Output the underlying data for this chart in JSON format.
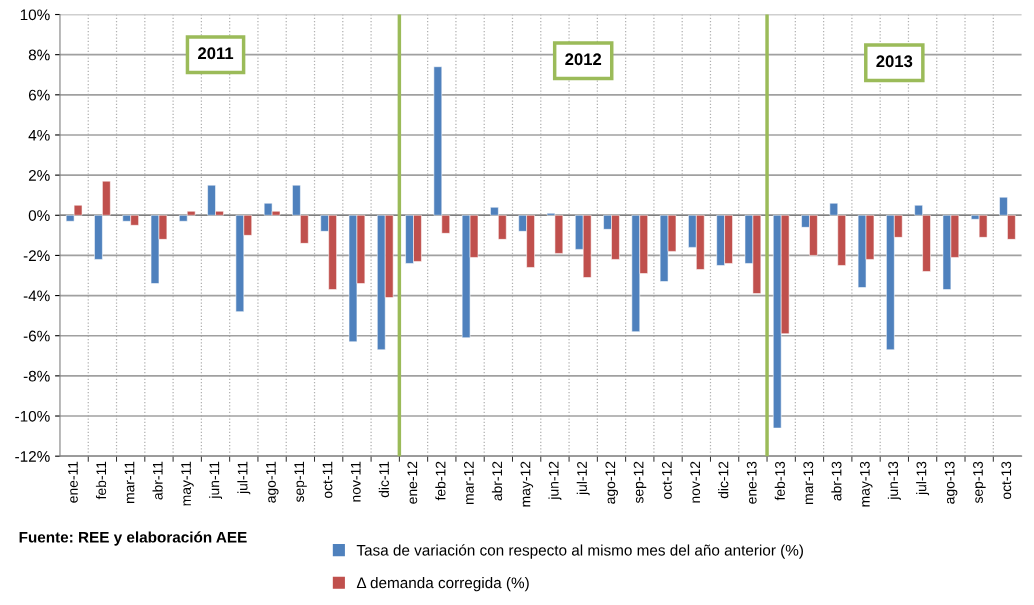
{
  "chart_data": {
    "type": "bar",
    "categories": [
      "ene-11",
      "feb-11",
      "mar-11",
      "abr-11",
      "may-11",
      "jun-11",
      "jul-11",
      "ago-11",
      "sep-11",
      "oct-11",
      "nov-11",
      "dic-11",
      "ene-12",
      "feb-12",
      "mar-12",
      "abr-12",
      "may-12",
      "jun-12",
      "jul-12",
      "ago-12",
      "sep-12",
      "oct-12",
      "nov-12",
      "dic-12",
      "ene-13",
      "feb-13",
      "mar-13",
      "abr-13",
      "may-13",
      "jun-13",
      "jul-13",
      "ago-13",
      "sep-13",
      "oct-13"
    ],
    "series": [
      {
        "name": "Tasa de variación con respecto al mismo mes del año anterior (%)",
        "color": "#4f81bd",
        "values": [
          -0.3,
          -2.2,
          -0.3,
          -3.4,
          -0.3,
          1.5,
          -4.8,
          0.6,
          1.5,
          -0.8,
          -6.3,
          -6.7,
          -2.4,
          7.4,
          -6.1,
          0.4,
          -0.8,
          0.1,
          -1.7,
          -0.7,
          -5.8,
          -3.3,
          -1.6,
          -2.5,
          -2.4,
          -10.6,
          -0.6,
          0.6,
          -3.6,
          -6.7,
          0.5,
          -3.7,
          -0.2,
          0.9
        ]
      },
      {
        "name": "Δ demanda corregida (%)",
        "color": "#c0504d",
        "values": [
          0.5,
          1.7,
          -0.5,
          -1.2,
          0.2,
          0.2,
          -1.0,
          0.2,
          -1.4,
          -3.7,
          -3.4,
          -4.1,
          -2.3,
          -0.9,
          -2.1,
          -1.2,
          -2.6,
          -1.9,
          -3.1,
          -2.2,
          -2.9,
          -1.8,
          -2.7,
          -2.4,
          -3.9,
          -5.9,
          -2.0,
          -2.5,
          -2.2,
          -1.1,
          -2.8,
          -2.1,
          -1.1,
          -1.2
        ]
      }
    ],
    "ylim": [
      -12,
      10
    ],
    "yticks": [
      {
        "value": -12,
        "label": "-12%"
      },
      {
        "value": -10,
        "label": "-10%"
      },
      {
        "value": -8,
        "label": "-8%"
      },
      {
        "value": -6,
        "label": "-6%"
      },
      {
        "value": -4,
        "label": "-4%"
      },
      {
        "value": -2,
        "label": "-2%"
      },
      {
        "value": 0,
        "label": "0%"
      },
      {
        "value": 2,
        "label": "2%"
      },
      {
        "value": 4,
        "label": "4%"
      },
      {
        "value": 6,
        "label": "6%"
      },
      {
        "value": 8,
        "label": "8%"
      },
      {
        "value": 10,
        "label": "10%"
      }
    ],
    "annotations": [
      "2011",
      "2012",
      "2013",
      "Fuente: REE y elaboración AEE"
    ],
    "grid": true,
    "legend": "bottom"
  }
}
